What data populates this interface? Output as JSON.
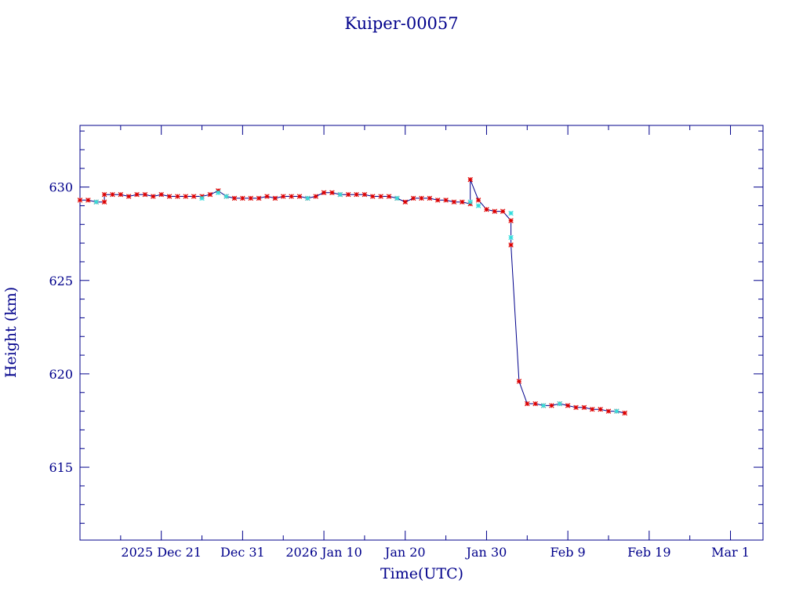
{
  "chart_data": {
    "type": "line",
    "title": "Kuiper-00057",
    "xlabel": "Time(UTC)",
    "ylabel": "Height (km)",
    "x_tick_labels": [
      "2025 Dec 21",
      "Dec 31",
      "2026 Jan 10",
      "Jan 20",
      "Jan 30",
      "Feb  9",
      "Feb 19",
      "Mar  1"
    ],
    "x_tick_dates": [
      "2025-12-21",
      "2025-12-31",
      "2026-01-10",
      "2026-01-20",
      "2026-01-30",
      "2026-02-09",
      "2026-02-19",
      "2026-03-01"
    ],
    "xlim": [
      "2025-12-11",
      "2026-03-05"
    ],
    "y_ticks": [
      615,
      620,
      625,
      630
    ],
    "ylim": [
      611.1,
      633.3
    ],
    "grid": false,
    "colors": {
      "axes": "#00008b",
      "line": "#00008b",
      "marker_primary": "#dd0000",
      "marker_secondary": "#33dddd"
    },
    "series": [
      {
        "marker": "asterisk",
        "points": [
          {
            "x": "2025-12-11",
            "y": 629.3
          },
          {
            "x": "2025-12-12",
            "y": 629.3
          },
          {
            "x": "2025-12-13",
            "y": 629.2
          },
          {
            "x": "2025-12-14",
            "y": 629.2
          },
          {
            "x": "2025-12-14",
            "y": 629.6
          },
          {
            "x": "2025-12-15",
            "y": 629.6
          },
          {
            "x": "2025-12-16",
            "y": 629.6
          },
          {
            "x": "2025-12-17",
            "y": 629.5
          },
          {
            "x": "2025-12-18",
            "y": 629.6
          },
          {
            "x": "2025-12-19",
            "y": 629.6
          },
          {
            "x": "2025-12-20",
            "y": 629.5
          },
          {
            "x": "2025-12-21",
            "y": 629.6
          },
          {
            "x": "2025-12-22",
            "y": 629.5
          },
          {
            "x": "2025-12-23",
            "y": 629.5
          },
          {
            "x": "2025-12-24",
            "y": 629.5
          },
          {
            "x": "2025-12-25",
            "y": 629.5
          },
          {
            "x": "2025-12-26",
            "y": 629.5
          },
          {
            "x": "2025-12-27",
            "y": 629.6
          },
          {
            "x": "2025-12-28",
            "y": 629.8
          },
          {
            "x": "2025-12-29",
            "y": 629.5
          },
          {
            "x": "2025-12-30",
            "y": 629.4
          },
          {
            "x": "2025-12-31",
            "y": 629.4
          },
          {
            "x": "2026-01-01",
            "y": 629.4
          },
          {
            "x": "2026-01-02",
            "y": 629.4
          },
          {
            "x": "2026-01-03",
            "y": 629.5
          },
          {
            "x": "2026-01-04",
            "y": 629.4
          },
          {
            "x": "2026-01-05",
            "y": 629.5
          },
          {
            "x": "2026-01-06",
            "y": 629.5
          },
          {
            "x": "2026-01-07",
            "y": 629.5
          },
          {
            "x": "2026-01-08",
            "y": 629.4
          },
          {
            "x": "2026-01-09",
            "y": 629.5
          },
          {
            "x": "2026-01-10",
            "y": 629.7
          },
          {
            "x": "2026-01-11",
            "y": 629.7
          },
          {
            "x": "2026-01-12",
            "y": 629.6
          },
          {
            "x": "2026-01-13",
            "y": 629.6
          },
          {
            "x": "2026-01-14",
            "y": 629.6
          },
          {
            "x": "2026-01-15",
            "y": 629.6
          },
          {
            "x": "2026-01-16",
            "y": 629.5
          },
          {
            "x": "2026-01-17",
            "y": 629.5
          },
          {
            "x": "2026-01-18",
            "y": 629.5
          },
          {
            "x": "2026-01-19",
            "y": 629.4
          },
          {
            "x": "2026-01-20",
            "y": 629.2
          },
          {
            "x": "2026-01-21",
            "y": 629.4
          },
          {
            "x": "2026-01-22",
            "y": 629.4
          },
          {
            "x": "2026-01-23",
            "y": 629.4
          },
          {
            "x": "2026-01-24",
            "y": 629.3
          },
          {
            "x": "2026-01-25",
            "y": 629.3
          },
          {
            "x": "2026-01-26",
            "y": 629.2
          },
          {
            "x": "2026-01-27",
            "y": 629.2
          },
          {
            "x": "2026-01-28",
            "y": 629.1
          },
          {
            "x": "2026-01-28",
            "y": 630.4
          },
          {
            "x": "2026-01-29",
            "y": 629.3
          },
          {
            "x": "2026-01-30",
            "y": 628.8
          },
          {
            "x": "2026-01-31",
            "y": 628.7
          },
          {
            "x": "2026-02-01",
            "y": 628.7
          },
          {
            "x": "2026-02-02",
            "y": 628.2
          },
          {
            "x": "2026-02-02",
            "y": 626.9
          },
          {
            "x": "2026-02-03",
            "y": 619.6
          },
          {
            "x": "2026-02-04",
            "y": 618.4
          },
          {
            "x": "2026-02-05",
            "y": 618.4
          },
          {
            "x": "2026-02-06",
            "y": 618.3
          },
          {
            "x": "2026-02-07",
            "y": 618.3
          },
          {
            "x": "2026-02-08",
            "y": 618.4
          },
          {
            "x": "2026-02-09",
            "y": 618.3
          },
          {
            "x": "2026-02-10",
            "y": 618.2
          },
          {
            "x": "2026-02-11",
            "y": 618.2
          },
          {
            "x": "2026-02-12",
            "y": 618.1
          },
          {
            "x": "2026-02-13",
            "y": 618.1
          },
          {
            "x": "2026-02-14",
            "y": 618.0
          },
          {
            "x": "2026-02-15",
            "y": 618.0
          },
          {
            "x": "2026-02-16",
            "y": 617.9
          }
        ]
      },
      {
        "marker": "asterisk",
        "points": [
          {
            "x": "2025-12-13",
            "y": 629.2
          },
          {
            "x": "2025-12-26",
            "y": 629.4
          },
          {
            "x": "2025-12-28",
            "y": 629.7
          },
          {
            "x": "2025-12-29",
            "y": 629.5
          },
          {
            "x": "2026-01-08",
            "y": 629.4
          },
          {
            "x": "2026-01-12",
            "y": 629.6
          },
          {
            "x": "2026-01-19",
            "y": 629.4
          },
          {
            "x": "2026-01-28",
            "y": 629.2
          },
          {
            "x": "2026-01-29",
            "y": 629.0
          },
          {
            "x": "2026-02-02",
            "y": 628.6
          },
          {
            "x": "2026-02-02",
            "y": 627.3
          },
          {
            "x": "2026-02-06",
            "y": 618.3
          },
          {
            "x": "2026-02-08",
            "y": 618.4
          },
          {
            "x": "2026-02-15",
            "y": 618.0
          }
        ]
      }
    ]
  }
}
